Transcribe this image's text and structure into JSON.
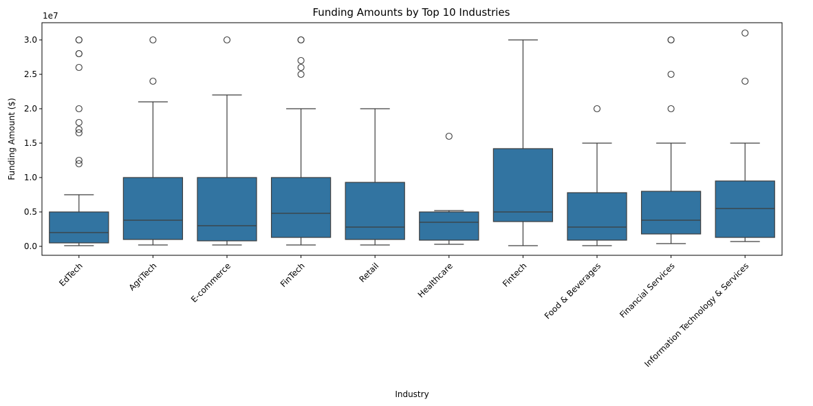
{
  "chart_data": {
    "type": "boxplot",
    "title": "Funding Amounts by Top 10 Industries",
    "xlabel": "Industry",
    "ylabel": "Funding Amount ($)",
    "y_offset_label": "1e7",
    "ylim": [
      -0.13,
      3.25
    ],
    "y_unit_scale": "1e7",
    "yticks": [
      0.0,
      0.5,
      1.0,
      1.5,
      2.0,
      2.5,
      3.0
    ],
    "ytick_labels": [
      "0.0",
      "0.5",
      "1.0",
      "1.5",
      "2.0",
      "2.5",
      "3.0"
    ],
    "box_color": "#3274a1",
    "line_color": "#3d3d3d",
    "categories": [
      "EdTech",
      "AgriTech",
      "E-commerce",
      "FinTech",
      "Retail",
      "Healthcare",
      "Fintech",
      "Food & Beverages",
      "Financial Services",
      "Information Technology & Services"
    ],
    "boxes": [
      {
        "category": "EdTech",
        "whisker_low": 0.01,
        "q1": 0.05,
        "median": 0.2,
        "q3": 0.5,
        "whisker_high": 0.75,
        "outliers": [
          1.2,
          1.25,
          1.65,
          1.7,
          1.8,
          2.0,
          2.6,
          2.8,
          2.8,
          3.0,
          3.0
        ]
      },
      {
        "category": "AgriTech",
        "whisker_low": 0.02,
        "q1": 0.1,
        "median": 0.38,
        "q3": 1.0,
        "whisker_high": 2.1,
        "outliers": [
          2.4,
          3.0
        ]
      },
      {
        "category": "E-commerce",
        "whisker_low": 0.02,
        "q1": 0.08,
        "median": 0.3,
        "q3": 1.0,
        "whisker_high": 2.2,
        "outliers": [
          3.0
        ]
      },
      {
        "category": "FinTech",
        "whisker_low": 0.02,
        "q1": 0.13,
        "median": 0.48,
        "q3": 1.0,
        "whisker_high": 2.0,
        "outliers": [
          2.5,
          2.6,
          2.7,
          3.0,
          3.0
        ]
      },
      {
        "category": "Retail",
        "whisker_low": 0.02,
        "q1": 0.1,
        "median": 0.28,
        "q3": 0.93,
        "whisker_high": 2.0,
        "outliers": []
      },
      {
        "category": "Healthcare",
        "whisker_low": 0.03,
        "q1": 0.09,
        "median": 0.35,
        "q3": 0.5,
        "whisker_high": 0.52,
        "outliers": [
          1.6
        ]
      },
      {
        "category": "Fintech",
        "whisker_low": 0.01,
        "q1": 0.36,
        "median": 0.5,
        "q3": 1.42,
        "whisker_high": 3.0,
        "outliers": []
      },
      {
        "category": "Food & Beverages",
        "whisker_low": 0.01,
        "q1": 0.09,
        "median": 0.28,
        "q3": 0.78,
        "whisker_high": 1.5,
        "outliers": [
          2.0
        ]
      },
      {
        "category": "Financial Services",
        "whisker_low": 0.04,
        "q1": 0.18,
        "median": 0.38,
        "q3": 0.8,
        "whisker_high": 1.5,
        "outliers": [
          2.0,
          2.5,
          3.0,
          3.0
        ]
      },
      {
        "category": "Information Technology & Services",
        "whisker_low": 0.07,
        "q1": 0.13,
        "median": 0.55,
        "q3": 0.95,
        "whisker_high": 1.5,
        "outliers": [
          2.4,
          3.1
        ]
      }
    ],
    "grid": false,
    "legend": "none"
  }
}
